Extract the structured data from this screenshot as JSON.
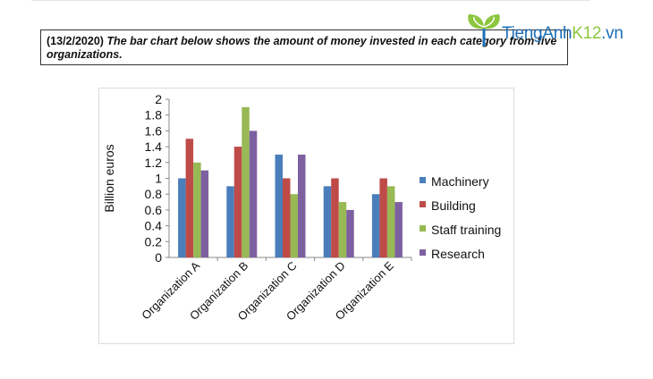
{
  "question": {
    "prefix": "(13/2/2020)",
    "text": "The bar chart below shows the amount of money invested in each category from five organizations."
  },
  "logo": {
    "part1": "TiengAnh",
    "part2": "K12",
    "part3": ".vn",
    "primary_color": "#1e6fb8",
    "accent_color": "#8cc63f"
  },
  "chart_data": {
    "type": "bar",
    "title": "",
    "xlabel": "",
    "ylabel": "Billion euros",
    "ylim": [
      0,
      2
    ],
    "yticks": [
      "0",
      "0.2",
      "0.4",
      "0.6",
      "0.8",
      "1",
      "1.2",
      "1.4",
      "1.6",
      "1.8",
      "2"
    ],
    "categories": [
      "Organization A",
      "Organization B",
      "Organization C",
      "Organization D",
      "Organization E"
    ],
    "series": [
      {
        "name": "Machinery",
        "color": "#4a7ebb",
        "values": [
          1.0,
          0.9,
          1.3,
          0.9,
          0.8
        ]
      },
      {
        "name": "Building",
        "color": "#be4b48",
        "values": [
          1.5,
          1.4,
          1.0,
          1.0,
          1.0
        ]
      },
      {
        "name": "Staff training",
        "color": "#98b954",
        "values": [
          1.2,
          1.9,
          0.8,
          0.7,
          0.9
        ]
      },
      {
        "name": "Research",
        "color": "#7d60a0",
        "values": [
          1.1,
          1.6,
          1.3,
          0.6,
          0.7
        ]
      }
    ],
    "grid": false,
    "legend_position": "right"
  }
}
